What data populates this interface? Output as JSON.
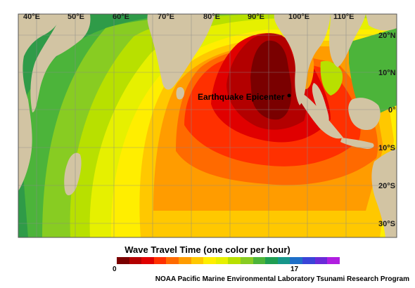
{
  "map": {
    "longitude_labels": [
      "40°E",
      "50°E",
      "60°E",
      "70°E",
      "80°E",
      "90°E",
      "100°E",
      "110°E"
    ],
    "latitude_labels": [
      "20°N",
      "10°N",
      "0°",
      "10°S",
      "20°S",
      "30°S"
    ],
    "epicenter_label": "Earthquake Epicenter",
    "colors": {
      "land": "#d2c4a3",
      "gridline": "#8a8a8a",
      "epicenter_marker": "#000000"
    }
  },
  "legend": {
    "title": "Wave Travel Time (one color per hour)",
    "min_label": "0",
    "max_label": "17",
    "colors": [
      "#7a0000",
      "#b30000",
      "#e00000",
      "#ff3000",
      "#ff6a00",
      "#ff9c00",
      "#ffc800",
      "#ffee00",
      "#e6f000",
      "#b8e000",
      "#88cc22",
      "#4cb43a",
      "#1f9e52",
      "#16968a",
      "#1e6fc8",
      "#3a44d8",
      "#6a2ad8",
      "#b01ee0"
    ]
  },
  "credit": "NOAA Pacific Marine Environmental Laboratory Tsunami Research Program"
}
